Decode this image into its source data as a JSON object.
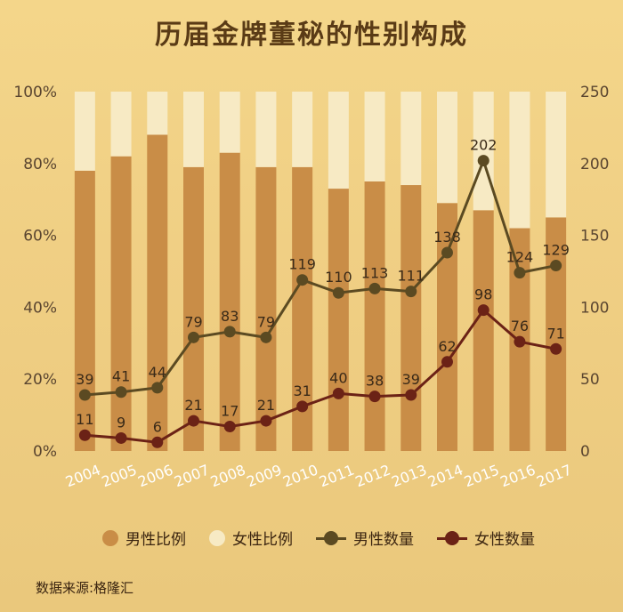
{
  "title": "历届金牌董秘的性别构成",
  "source": "数据来源:格隆汇",
  "legend": {
    "male_ratio": "男性比例",
    "female_ratio": "女性比例",
    "male_count": "男性数量",
    "female_count": "女性数量"
  },
  "colors": {
    "male_bar": "#c98d47",
    "female_bar": "#f7eac4",
    "male_line": "#5b4a22",
    "female_line": "#6b2216",
    "axis_text": "#5a4530"
  },
  "chart_data": {
    "type": "bar",
    "categories": [
      "2004",
      "2005",
      "2006",
      "2007",
      "2008",
      "2009",
      "2010",
      "2011",
      "2012",
      "2013",
      "2014",
      "2015",
      "2016",
      "2017"
    ],
    "y_left": {
      "ticks": [
        "0%",
        "20%",
        "40%",
        "60%",
        "80%",
        "100%"
      ],
      "range": [
        0,
        100
      ]
    },
    "y_right": {
      "ticks": [
        "0",
        "50",
        "100",
        "150",
        "200",
        "250"
      ],
      "range": [
        0,
        250
      ]
    },
    "series": [
      {
        "name": "男性比例",
        "type": "bar",
        "axis": "left",
        "values": [
          78,
          82,
          88,
          79,
          83,
          79,
          79,
          73,
          75,
          74,
          69,
          67,
          62,
          65
        ]
      },
      {
        "name": "女性比例",
        "type": "bar",
        "axis": "left",
        "values": [
          22,
          18,
          12,
          21,
          17,
          21,
          21,
          27,
          25,
          26,
          31,
          33,
          38,
          35
        ]
      },
      {
        "name": "男性数量",
        "type": "line",
        "axis": "right",
        "values": [
          39,
          41,
          44,
          79,
          83,
          79,
          119,
          110,
          113,
          111,
          138,
          202,
          124,
          129
        ]
      },
      {
        "name": "女性数量",
        "type": "line",
        "axis": "right",
        "values": [
          11,
          9,
          6,
          21,
          17,
          21,
          31,
          40,
          38,
          39,
          62,
          98,
          76,
          71
        ]
      }
    ]
  }
}
